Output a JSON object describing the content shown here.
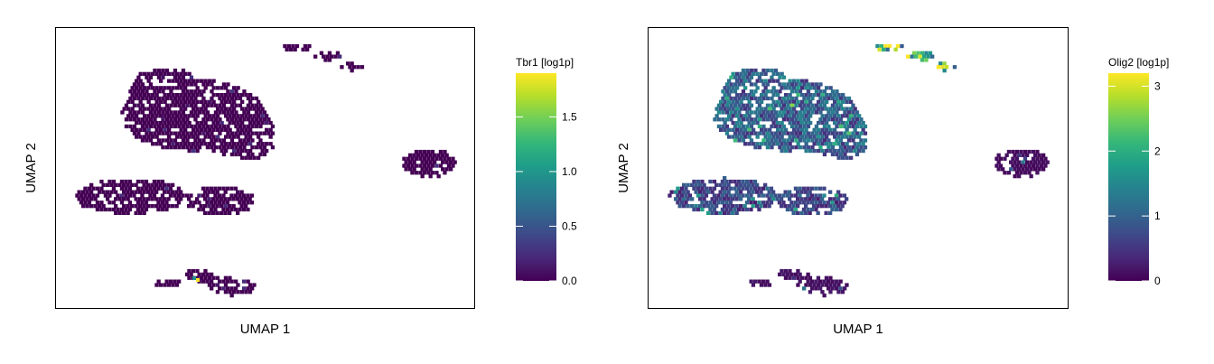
{
  "chart_data": [
    {
      "type": "scatter",
      "title": "",
      "xlabel": "UMAP 1",
      "ylabel": "UMAP 2",
      "colorbar": {
        "label": "Tbr1 [log1p]",
        "colormap": "viridis",
        "range": [
          0,
          1.9
        ],
        "ticks": [
          0.0,
          0.5,
          1.0,
          1.5
        ],
        "tick_labels": [
          "0.0",
          "0.5",
          "1.0",
          "1.5"
        ]
      },
      "clusters": [
        {
          "name": "upper-left",
          "mean_value": 0.0
        },
        {
          "name": "middle-left",
          "mean_value": 0.0
        },
        {
          "name": "bottom",
          "mean_value": 0.0,
          "hotspot_max": 1.9
        },
        {
          "name": "top-streak",
          "mean_value": 0.0
        },
        {
          "name": "right",
          "mean_value": 0.0
        }
      ]
    },
    {
      "type": "scatter",
      "title": "",
      "xlabel": "UMAP 1",
      "ylabel": "UMAP 2",
      "colorbar": {
        "label": "Olig2 [log1p]",
        "colormap": "viridis",
        "range": [
          0,
          3.2
        ],
        "ticks": [
          0,
          1,
          2,
          3
        ],
        "tick_labels": [
          "0",
          "1",
          "2",
          "3"
        ]
      },
      "clusters": [
        {
          "name": "upper-left",
          "mean_value": 0.95
        },
        {
          "name": "middle-left",
          "mean_value": 0.65
        },
        {
          "name": "bottom",
          "mean_value": 0.15
        },
        {
          "name": "top-streak",
          "mean_value": 2.2
        },
        {
          "name": "right",
          "mean_value": 0.1
        }
      ]
    }
  ]
}
